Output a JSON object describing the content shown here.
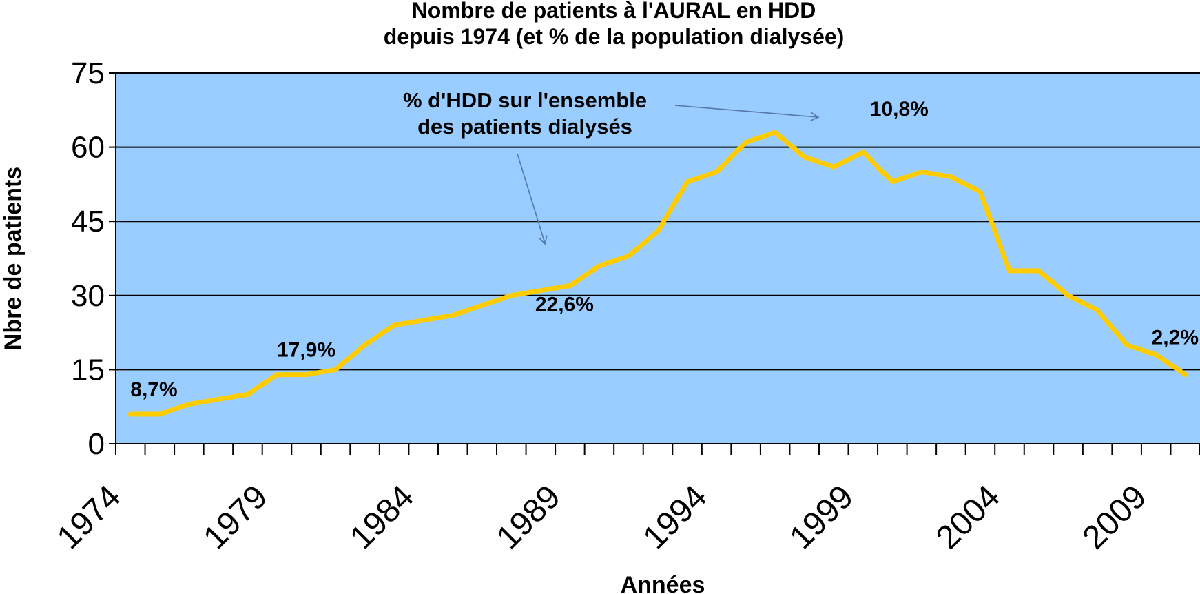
{
  "chart_data": {
    "type": "line",
    "title_lines": [
      "Nombre de patients à l'AURAL en HDD",
      "depuis 1974 (et % de la population dialysée)"
    ],
    "xlabel": "Années",
    "ylabel": "Nbre de patients",
    "ylim": [
      0,
      75
    ],
    "yticks": [
      0,
      15,
      30,
      45,
      60,
      75
    ],
    "xlim": [
      1974,
      2011
    ],
    "xtick_labels": [
      1974,
      1979,
      1984,
      1989,
      1994,
      1999,
      2004,
      2009
    ],
    "grid": "horizontal",
    "plot_background": "#99ccff",
    "series": [
      {
        "color": "#ffcc00",
        "x": [
          1974.5,
          1975.5,
          1976.5,
          1977.5,
          1978.5,
          1979.5,
          1980.5,
          1981.5,
          1982.5,
          1983.5,
          1984.5,
          1985.5,
          1986.5,
          1987.5,
          1988.5,
          1989.5,
          1990.5,
          1991.5,
          1992.5,
          1993.5,
          1994.5,
          1995.5,
          1996.5,
          1997.5,
          1998.5,
          1999.5,
          2000.5,
          2001.5,
          2002.5,
          2003.5,
          2004.5,
          2005.5,
          2006.5,
          2007.5,
          2008.5,
          2009.5,
          2010.5
        ],
        "values": [
          6,
          6,
          8,
          9,
          10,
          14,
          14,
          15,
          20,
          24,
          25,
          26,
          28,
          30,
          31,
          32,
          36,
          38,
          43,
          53,
          55,
          61,
          63,
          58,
          56,
          59,
          53,
          55,
          54,
          51,
          35,
          35,
          30,
          27,
          20,
          18,
          14
        ]
      }
    ],
    "annotations": [
      {
        "text": "8,7%",
        "x": 1974.5,
        "y": 6
      },
      {
        "text": "17,9%",
        "x": 1979.5,
        "y": 14
      },
      {
        "text": "22,6%",
        "x": 1988.5,
        "y": 31
      },
      {
        "text": "10,8%",
        "x": 1999.5,
        "y": 63
      },
      {
        "text": "2,2%",
        "x": 2010.5,
        "y": 14
      }
    ],
    "callout": {
      "lines": [
        "% d'HDD sur l'ensemble",
        "des patients dialysés"
      ]
    }
  }
}
